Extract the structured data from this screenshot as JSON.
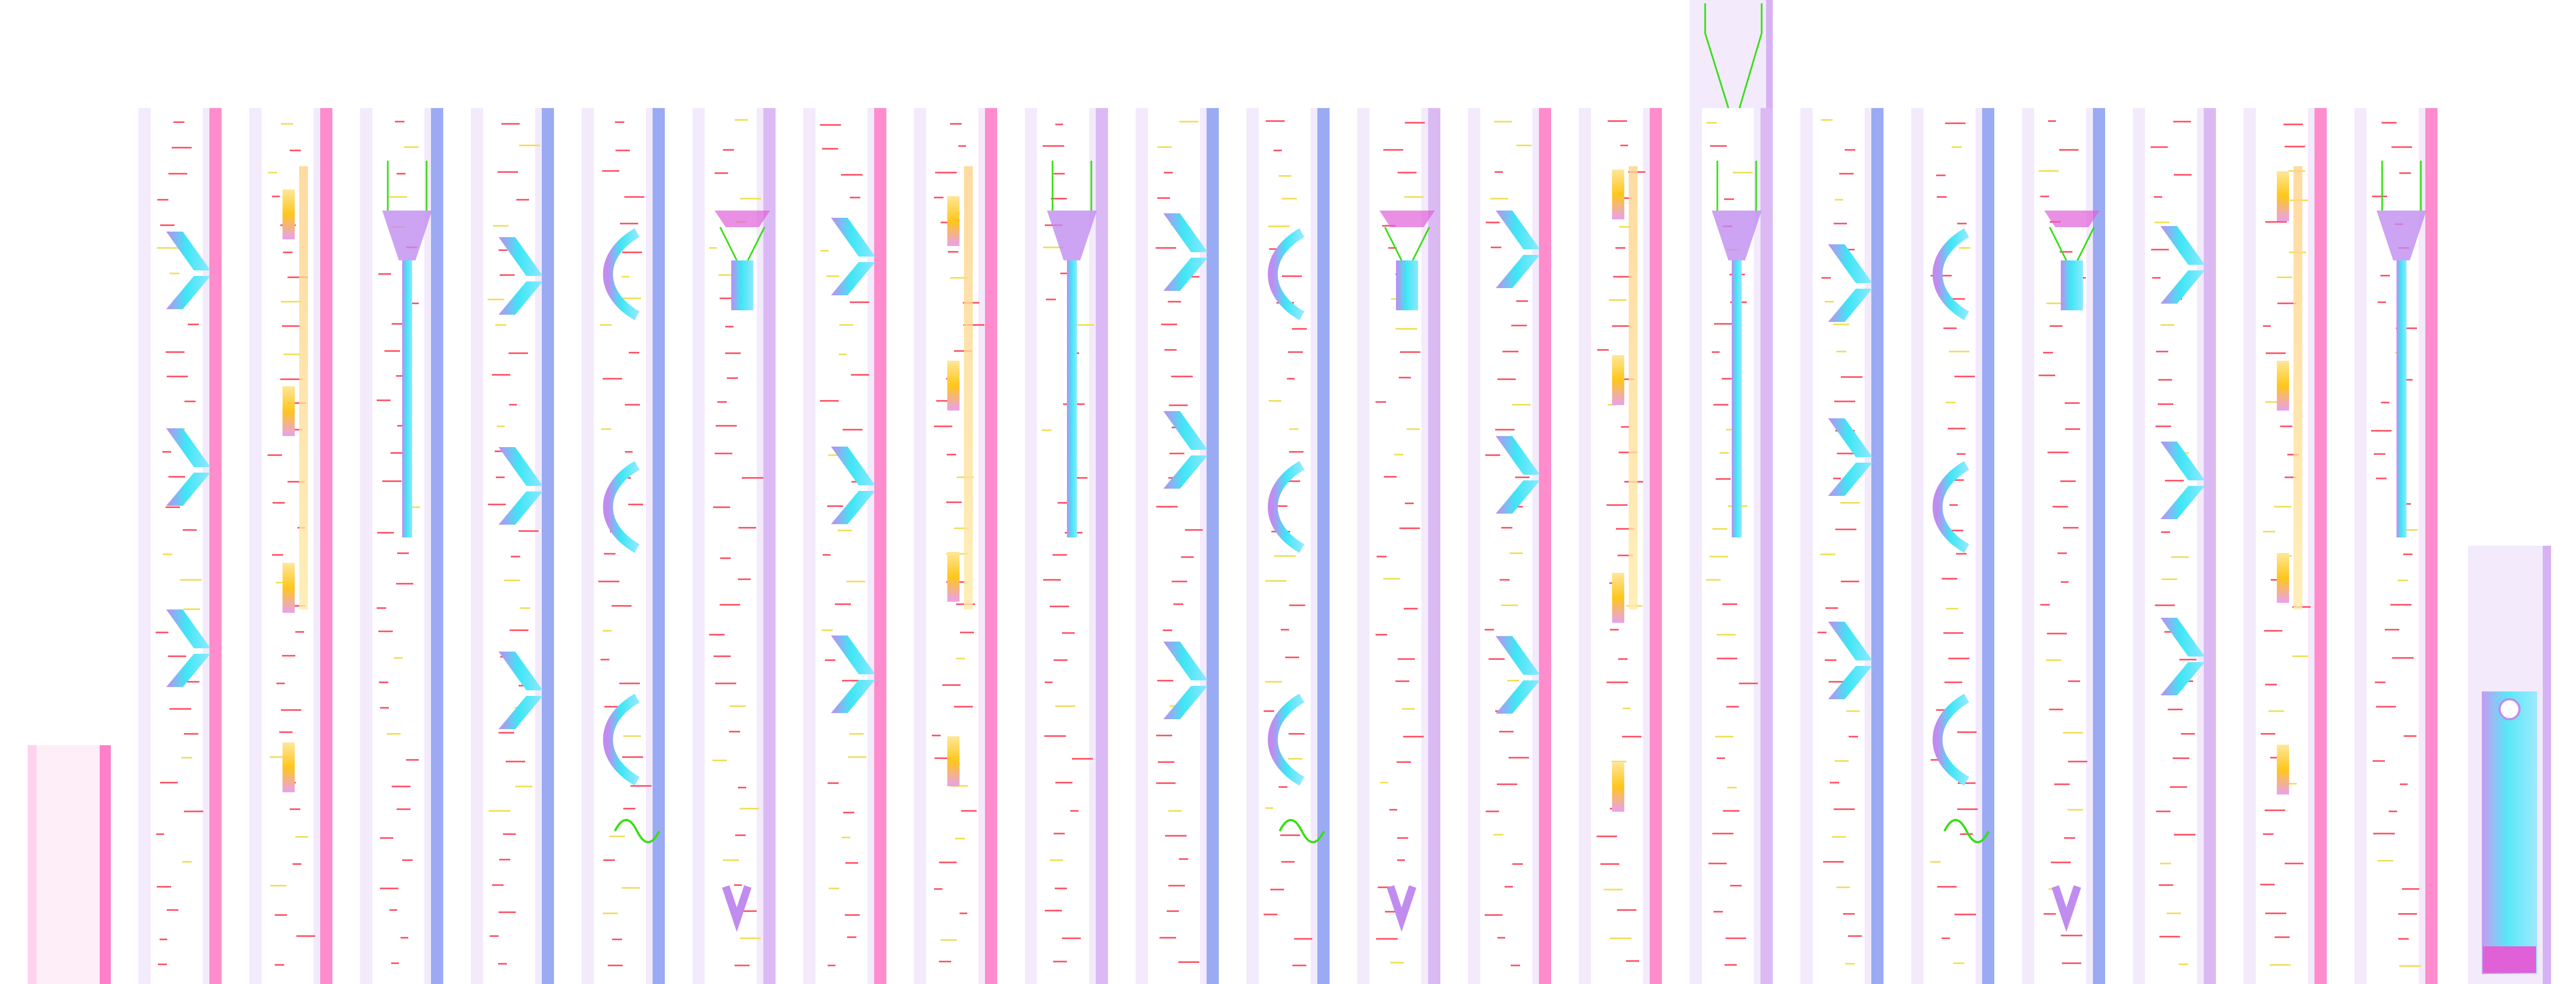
{
  "palette": {
    "column_base": "#f3eafc",
    "column_stripe_pink": "#ff7fc8",
    "column_stripe_blue": "#8fa2f2",
    "column_stripe_lavender": "#d7b2f3",
    "pipe_cyan": "#3ee6f5",
    "pipe_violet": "#c08cf0",
    "connector_green": "#35e010",
    "amber": "#ffc61a",
    "pale_yellow": "#ffe79a",
    "tick_red": "#ff5a6c",
    "tick_yellow": "#f0e060",
    "magenta_bar": "#e060d8"
  },
  "icons": [
    "green-bracket-icon",
    "green-scroll-icon",
    "funnel-icon",
    "diagonal-pipe-icon",
    "hook-icon",
    "clamp-icon"
  ]
}
